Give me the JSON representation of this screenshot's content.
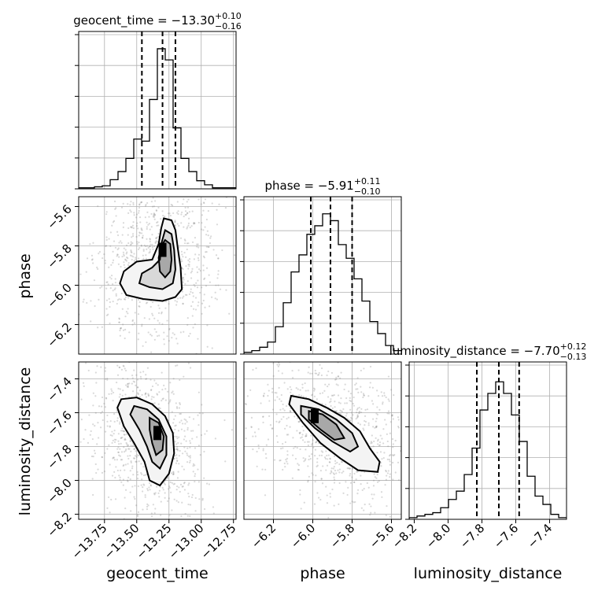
{
  "chart_data": {
    "type": "corner",
    "grid": true,
    "parameters": [
      {
        "name": "geocent_time",
        "xlabel": "geocent_time",
        "title_prefix": "geocent_time",
        "median": "−13.30",
        "plus": "+0.10",
        "minus": "−0.16",
        "quantiles": [
          -13.46,
          -13.3,
          -13.2
        ],
        "range": [
          -13.95,
          -12.73
        ],
        "ticks": [
          -13.75,
          -13.5,
          -13.25,
          -13.0,
          -12.75
        ],
        "tick_labels": [
          "−13.75",
          "−13.50",
          "−13.25",
          "−13.00",
          "−12.75"
        ],
        "hist_edges": [
          -13.95,
          -12.73
        ],
        "hist_counts": [
          1,
          1,
          2,
          3,
          9,
          17,
          30,
          49,
          47,
          88,
          138,
          127,
          60,
          30,
          17,
          8,
          4,
          1,
          1,
          1
        ],
        "hist_max": 155
      },
      {
        "name": "phase",
        "xlabel": "phase",
        "ylabel": "phase",
        "title_prefix": "phase",
        "median": "−5.91",
        "plus": "+0.11",
        "minus": "−0.10",
        "quantiles": [
          -6.01,
          -5.91,
          -5.8
        ],
        "range": [
          -6.35,
          -5.55
        ],
        "ticks": [
          -6.2,
          -6.0,
          -5.8,
          -5.6
        ],
        "tick_labels": [
          "−6.2",
          "−6.0",
          "−5.8",
          "−5.6"
        ],
        "hist_edges": [
          -6.35,
          -5.55
        ],
        "hist_counts": [
          1,
          2,
          4,
          7,
          16,
          30,
          48,
          58,
          70,
          75,
          82,
          78,
          64,
          56,
          44,
          31,
          19,
          12,
          5,
          2
        ],
        "hist_max": 92
      },
      {
        "name": "luminosity_distance",
        "xlabel": "luminosity_distance",
        "ylabel": "luminosity_distance",
        "title_prefix": "luminosity_distance",
        "median": "−7.70",
        "plus": "+0.12",
        "minus": "−0.13",
        "quantiles": [
          -7.83,
          -7.7,
          -7.58
        ],
        "range": [
          -8.23,
          -7.3
        ],
        "ticks": [
          -8.2,
          -8.0,
          -7.8,
          -7.6,
          -7.4
        ],
        "tick_labels": [
          "−8.2",
          "−8.0",
          "−7.8",
          "−7.6",
          "−7.4"
        ],
        "hist_edges": [
          -8.23,
          -7.3
        ],
        "hist_counts": [
          1,
          2,
          3,
          4,
          7,
          12,
          17,
          27,
          43,
          66,
          76,
          83,
          76,
          63,
          47,
          26,
          14,
          9,
          3,
          1
        ],
        "hist_max": 95
      }
    ],
    "pairs": [
      {
        "x": "geocent_time",
        "y": "phase",
        "density_peak": [
          -13.3,
          -5.82
        ],
        "contours": [
          [
            [
              -13.29,
              -5.66
            ],
            [
              -13.23,
              -5.67
            ],
            [
              -13.2,
              -5.72
            ],
            [
              -13.18,
              -5.82
            ],
            [
              -13.16,
              -5.91
            ],
            [
              -13.15,
              -6.02
            ],
            [
              -13.2,
              -6.06
            ],
            [
              -13.3,
              -6.08
            ],
            [
              -13.45,
              -6.07
            ],
            [
              -13.58,
              -6.05
            ],
            [
              -13.63,
              -5.99
            ],
            [
              -13.6,
              -5.93
            ],
            [
              -13.5,
              -5.88
            ],
            [
              -13.38,
              -5.87
            ],
            [
              -13.33,
              -5.79
            ],
            [
              -13.31,
              -5.71
            ]
          ],
          [
            [
              -13.28,
              -5.72
            ],
            [
              -13.23,
              -5.74
            ],
            [
              -13.21,
              -5.82
            ],
            [
              -13.2,
              -5.92
            ],
            [
              -13.22,
              -5.99
            ],
            [
              -13.3,
              -6.02
            ],
            [
              -13.4,
              -6.01
            ],
            [
              -13.48,
              -5.99
            ],
            [
              -13.46,
              -5.94
            ],
            [
              -13.38,
              -5.91
            ],
            [
              -13.32,
              -5.87
            ],
            [
              -13.31,
              -5.79
            ]
          ],
          [
            [
              -13.28,
              -5.77
            ],
            [
              -13.24,
              -5.79
            ],
            [
              -13.23,
              -5.87
            ],
            [
              -13.24,
              -5.93
            ],
            [
              -13.28,
              -5.96
            ],
            [
              -13.32,
              -5.93
            ],
            [
              -13.33,
              -5.86
            ],
            [
              -13.31,
              -5.8
            ]
          ]
        ]
      },
      {
        "x": "geocent_time",
        "y": "luminosity_distance",
        "density_peak": [
          -13.34,
          -7.72
        ],
        "contours": [
          [
            [
              -13.62,
              -7.52
            ],
            [
              -13.5,
              -7.51
            ],
            [
              -13.38,
              -7.55
            ],
            [
              -13.28,
              -7.62
            ],
            [
              -13.22,
              -7.72
            ],
            [
              -13.21,
              -7.84
            ],
            [
              -13.25,
              -7.96
            ],
            [
              -13.32,
              -8.03
            ],
            [
              -13.4,
              -8.0
            ],
            [
              -13.44,
              -7.89
            ],
            [
              -13.52,
              -7.78
            ],
            [
              -13.6,
              -7.68
            ],
            [
              -13.65,
              -7.57
            ]
          ],
          [
            [
              -13.52,
              -7.56
            ],
            [
              -13.42,
              -7.58
            ],
            [
              -13.33,
              -7.64
            ],
            [
              -13.27,
              -7.74
            ],
            [
              -13.27,
              -7.85
            ],
            [
              -13.32,
              -7.93
            ],
            [
              -13.38,
              -7.89
            ],
            [
              -13.42,
              -7.8
            ],
            [
              -13.48,
              -7.7
            ],
            [
              -13.55,
              -7.61
            ]
          ],
          [
            [
              -13.4,
              -7.63
            ],
            [
              -13.33,
              -7.66
            ],
            [
              -13.29,
              -7.74
            ],
            [
              -13.3,
              -7.82
            ],
            [
              -13.35,
              -7.85
            ],
            [
              -13.38,
              -7.78
            ],
            [
              -13.4,
              -7.7
            ]
          ]
        ]
      },
      {
        "x": "phase",
        "y": "luminosity_distance",
        "density_peak": [
          -5.99,
          -7.62
        ],
        "contours": [
          [
            [
              -6.11,
              -7.5
            ],
            [
              -6.02,
              -7.52
            ],
            [
              -5.93,
              -7.57
            ],
            [
              -5.84,
              -7.63
            ],
            [
              -5.76,
              -7.71
            ],
            [
              -5.71,
              -7.81
            ],
            [
              -5.66,
              -7.89
            ],
            [
              -5.67,
              -7.95
            ],
            [
              -5.77,
              -7.94
            ],
            [
              -5.86,
              -7.87
            ],
            [
              -5.96,
              -7.78
            ],
            [
              -6.05,
              -7.66
            ],
            [
              -6.12,
              -7.55
            ]
          ],
          [
            [
              -6.06,
              -7.56
            ],
            [
              -5.97,
              -7.58
            ],
            [
              -5.88,
              -7.64
            ],
            [
              -5.8,
              -7.72
            ],
            [
              -5.77,
              -7.8
            ],
            [
              -5.81,
              -7.83
            ],
            [
              -5.9,
              -7.77
            ],
            [
              -5.99,
              -7.69
            ],
            [
              -6.06,
              -7.61
            ]
          ],
          [
            [
              -6.02,
              -7.59
            ],
            [
              -5.95,
              -7.61
            ],
            [
              -5.88,
              -7.67
            ],
            [
              -5.84,
              -7.75
            ],
            [
              -5.89,
              -7.76
            ],
            [
              -5.96,
              -7.7
            ],
            [
              -6.02,
              -7.64
            ]
          ]
        ]
      }
    ]
  }
}
